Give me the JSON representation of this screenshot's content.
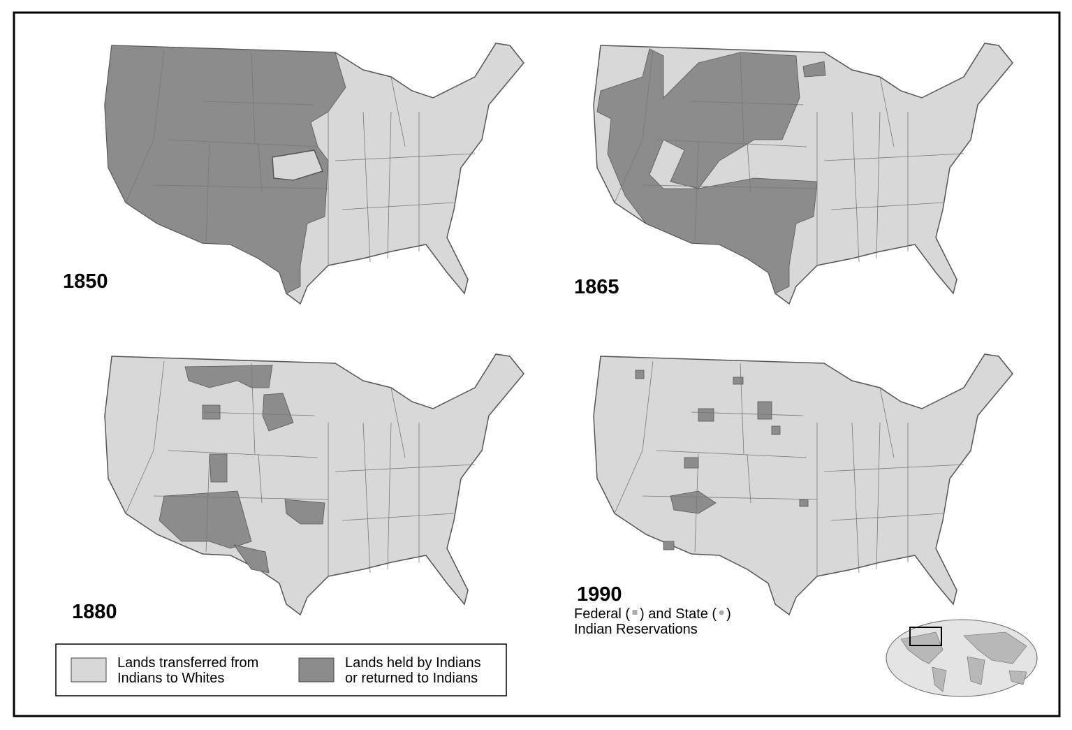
{
  "maps": [
    {
      "year": "1850"
    },
    {
      "year": "1865"
    },
    {
      "year": "1880"
    },
    {
      "year": "1990",
      "note": {
        "federal": "Federal (",
        "state": ") and State (",
        "close": ")",
        "line2": "Indian Reservations"
      }
    }
  ],
  "legend": {
    "items": [
      {
        "lines": [
          "Lands transferred from",
          "Indians to Whites"
        ]
      },
      {
        "lines": [
          "Lands held by Indians",
          "or returned to Indians"
        ]
      }
    ]
  }
}
